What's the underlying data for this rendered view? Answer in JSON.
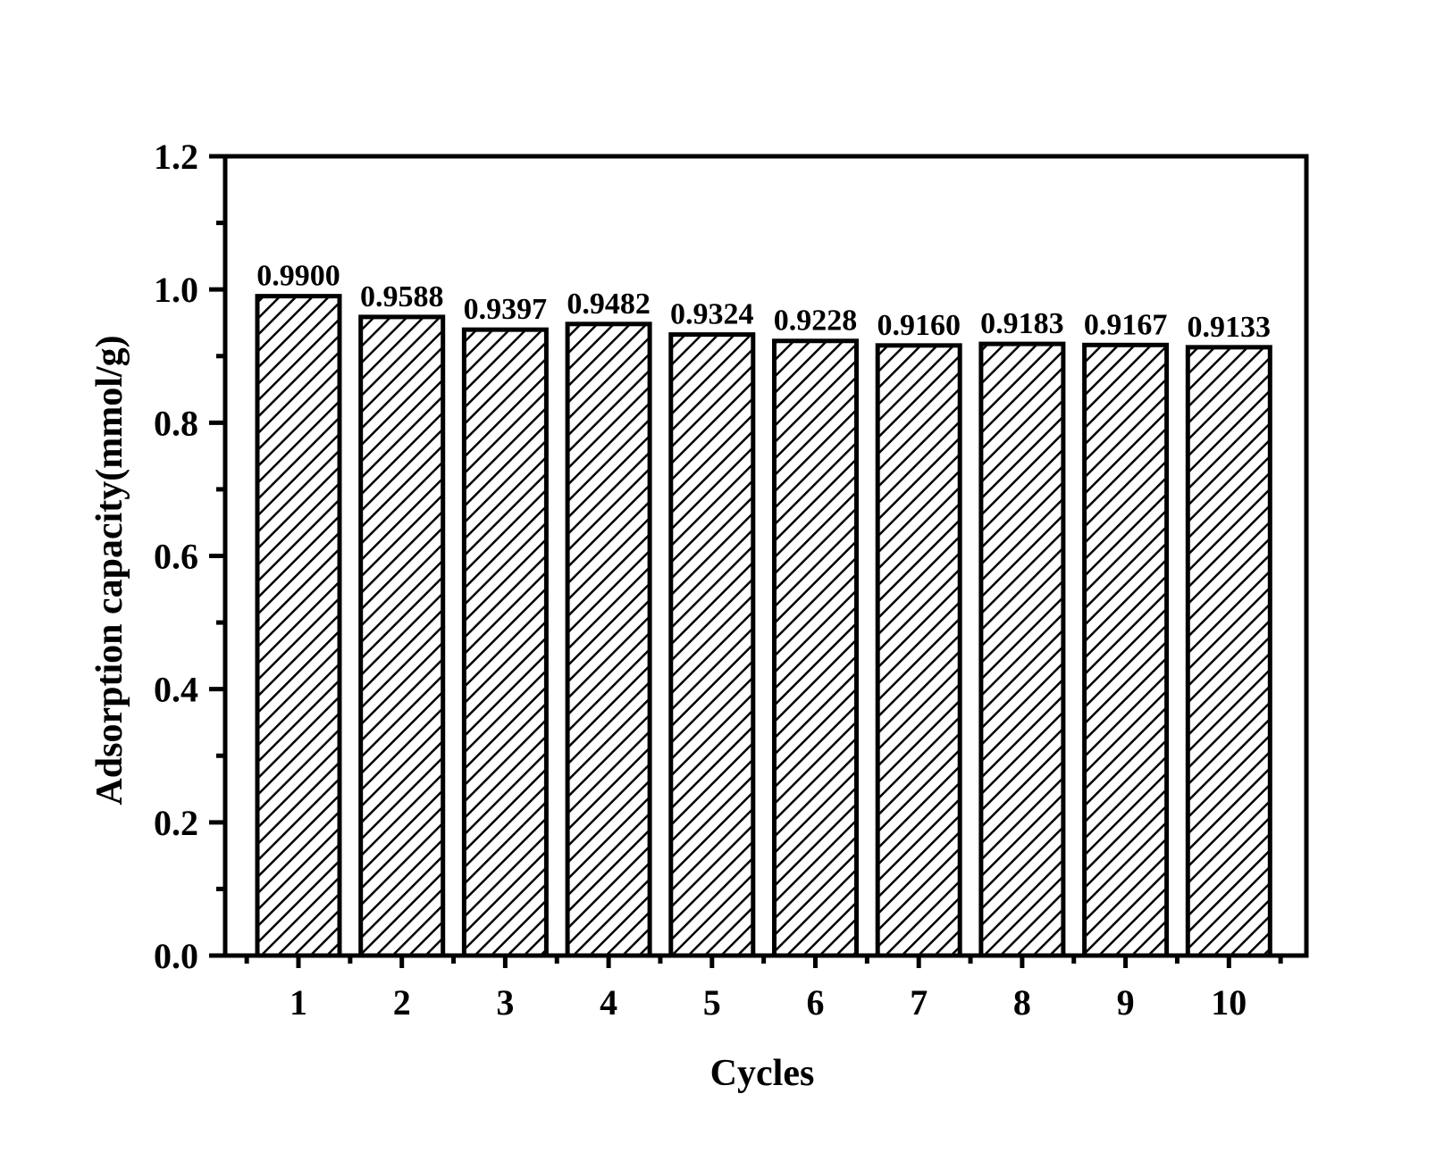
{
  "chart_data": {
    "type": "bar",
    "categories": [
      "1",
      "2",
      "3",
      "4",
      "5",
      "6",
      "7",
      "8",
      "9",
      "10"
    ],
    "values": [
      0.99,
      0.9588,
      0.9397,
      0.9482,
      0.9324,
      0.9228,
      0.916,
      0.9183,
      0.9167,
      0.9133
    ],
    "data_labels": [
      "0.9900",
      "0.9588",
      "0.9397",
      "0.9482",
      "0.9324",
      "0.9228",
      "0.9160",
      "0.9183",
      "0.9167",
      "0.9133"
    ],
    "xlabel": "Cycles",
    "ylabel": "Adsorption capacity(mmol/g)",
    "ylim": [
      0,
      1.2
    ],
    "yticks": [
      0.0,
      0.2,
      0.4,
      0.6,
      0.8,
      1.0,
      1.2
    ],
    "ytick_labels": [
      "0.0",
      "0.2",
      "0.4",
      "0.6",
      "0.8",
      "1.0",
      "1.2"
    ],
    "grid": false,
    "bar_fill": "diagonal-hatch",
    "colors": {
      "stroke": "#000000",
      "background": "#ffffff"
    }
  }
}
